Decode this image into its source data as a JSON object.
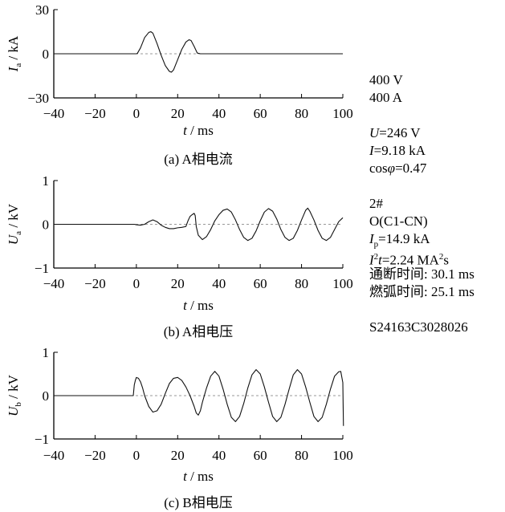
{
  "chart_data": [
    {
      "type": "line",
      "caption": "(a)  A相电流",
      "ylabel_main": "I",
      "ylabel_sub": "a",
      "ylabel_unit": " / kA",
      "xlabel_main": "t",
      "xlabel_unit": " / ms",
      "xlim": [
        -40,
        100
      ],
      "ylim": [
        -30,
        30
      ],
      "xticks": [
        "−40",
        "−20",
        "0",
        "20",
        "40",
        "60",
        "80",
        "100"
      ],
      "xtick_values": [
        -40,
        -20,
        0,
        20,
        40,
        60,
        80,
        100
      ],
      "yticks": [
        "−30",
        "0",
        "30"
      ],
      "ytick_values": [
        -30,
        0,
        30
      ],
      "reference_line": 0,
      "series": [
        {
          "x": [
            -40,
            0,
            0.5,
            2,
            4,
            6,
            7,
            8,
            10,
            12,
            14,
            16,
            17,
            18,
            20,
            22,
            24,
            25.5,
            26.5,
            28,
            29.5,
            31,
            40,
            100
          ],
          "y": [
            0,
            0,
            0.3,
            4,
            11,
            14.5,
            15,
            14,
            7,
            -1,
            -8,
            -12,
            -12.5,
            -11,
            -4,
            3,
            8,
            9.5,
            9,
            5,
            0.5,
            0,
            0,
            0
          ]
        }
      ]
    },
    {
      "type": "line",
      "caption": "(b)  A相电压",
      "ylabel_main": "U",
      "ylabel_sub": "a",
      "ylabel_unit": " / kV",
      "xlabel_main": "t",
      "xlabel_unit": " / ms",
      "xlim": [
        -40,
        100
      ],
      "ylim": [
        -1,
        1
      ],
      "xticks": [
        "−40",
        "−20",
        "0",
        "20",
        "40",
        "60",
        "80",
        "100"
      ],
      "xtick_values": [
        -40,
        -20,
        0,
        20,
        40,
        60,
        80,
        100
      ],
      "yticks": [
        "−1",
        "0",
        "1"
      ],
      "yticks_values_note": "",
      "ytick_values": [
        -1,
        0,
        1
      ],
      "reference_line": 0,
      "series": [
        {
          "x": [
            -40,
            -1,
            0,
            2,
            4,
            6,
            8,
            10,
            12,
            14,
            16,
            18,
            20,
            22,
            24,
            25,
            26,
            27,
            28,
            28.5,
            29,
            30,
            32,
            34,
            36,
            38,
            40,
            42,
            44,
            46,
            48,
            50,
            52,
            54,
            56,
            58,
            60,
            62,
            64,
            66,
            68,
            70,
            72,
            74,
            76,
            78,
            80,
            82,
            83,
            84,
            86,
            88,
            90,
            92,
            94,
            96,
            98,
            100
          ],
          "y": [
            0,
            0,
            -0.01,
            -0.02,
            0.0,
            0.06,
            0.1,
            0.06,
            -0.02,
            -0.07,
            -0.1,
            -0.1,
            -0.08,
            -0.07,
            -0.05,
            0.08,
            0.18,
            0.22,
            0.25,
            0.2,
            -0.05,
            -0.25,
            -0.35,
            -0.28,
            -0.12,
            0.08,
            0.22,
            0.32,
            0.35,
            0.28,
            0.1,
            -0.12,
            -0.3,
            -0.37,
            -0.32,
            -0.15,
            0.08,
            0.28,
            0.36,
            0.3,
            0.12,
            -0.12,
            -0.3,
            -0.37,
            -0.32,
            -0.14,
            0.1,
            0.32,
            0.37,
            0.3,
            0.1,
            -0.14,
            -0.32,
            -0.37,
            -0.3,
            -0.12,
            0.06,
            0.15
          ]
        }
      ]
    },
    {
      "type": "line",
      "caption": "(c)  B相电压",
      "ylabel_main": "U",
      "ylabel_sub": "b",
      "ylabel_unit": " / kV",
      "xlabel_main": "t",
      "xlabel_unit": " / ms",
      "xlim": [
        -40,
        100
      ],
      "ylim": [
        -1,
        1
      ],
      "xticks": [
        "−40",
        "−20",
        "0",
        "20",
        "40",
        "60",
        "80",
        "100"
      ],
      "xtick_values": [
        -40,
        -20,
        0,
        20,
        40,
        60,
        80,
        100
      ],
      "yticks": [
        "−1",
        "0",
        "1"
      ],
      "ytick_values": [
        -1,
        0,
        1
      ],
      "reference_line": 0,
      "series": [
        {
          "x": [
            -40,
            -1.5,
            -1,
            -0.5,
            0,
            1,
            2,
            3,
            4,
            6,
            8,
            10,
            12,
            14,
            16,
            18,
            20,
            22,
            24,
            26,
            28,
            29,
            30,
            31,
            32,
            34,
            36,
            38,
            40,
            42,
            44,
            46,
            48,
            50,
            52,
            54,
            56,
            58,
            60,
            62,
            64,
            66,
            68,
            70,
            72,
            74,
            76,
            78,
            80,
            82,
            84,
            86,
            88,
            90,
            92,
            94,
            96,
            98,
            99,
            100,
            100.3
          ],
          "y": [
            0,
            0,
            0.25,
            0.35,
            0.42,
            0.4,
            0.32,
            0.18,
            0.0,
            -0.25,
            -0.38,
            -0.35,
            -0.2,
            0.05,
            0.28,
            0.4,
            0.42,
            0.35,
            0.2,
            0.0,
            -0.25,
            -0.4,
            -0.45,
            -0.35,
            -0.15,
            0.18,
            0.45,
            0.56,
            0.45,
            0.15,
            -0.2,
            -0.5,
            -0.6,
            -0.48,
            -0.18,
            0.18,
            0.48,
            0.6,
            0.5,
            0.2,
            -0.15,
            -0.48,
            -0.6,
            -0.5,
            -0.2,
            0.15,
            0.48,
            0.6,
            0.5,
            0.2,
            -0.15,
            -0.48,
            -0.6,
            -0.5,
            -0.2,
            0.15,
            0.45,
            0.55,
            0.56,
            0.3,
            -0.7
          ]
        }
      ]
    }
  ],
  "side_info": {
    "line1": "400 V",
    "line2": "400 A",
    "u_main": "U",
    "u_val": "=246 V",
    "i_main": "I",
    "i_val": "=9.18 kA",
    "cos_pre": "cos",
    "cos_phi": "φ",
    "cos_val": "=0.47",
    "num": "2#",
    "op": "O(C1-CN)",
    "ip_main": "I",
    "ip_sub": "p",
    "ip_val": "=14.9 kA",
    "i2t_main": "I",
    "i2t_sup": "2",
    "i2t_t": "t",
    "i2t_val": "=2.24 MA",
    "i2t_sup2": "2",
    "i2t_unit": "s",
    "break_time": "通断时间: 30.1 ms",
    "arc_time": "燃弧时间: 25.1 ms",
    "code": "S24163C3028026"
  }
}
